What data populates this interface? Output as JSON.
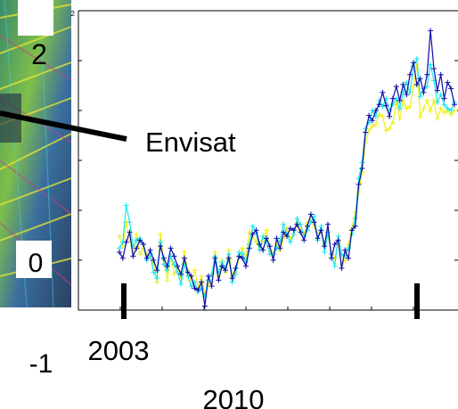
{
  "chart_data": {
    "type": "line",
    "title": "",
    "xlabel": "",
    "ylabel": "",
    "ylim": [
      -0.5,
      2.5
    ],
    "xlim": [
      2003,
      2011
    ],
    "y_tick_labels": [
      "2",
      "0",
      "-1"
    ],
    "x_tick_labels": [
      "2003",
      "2010"
    ],
    "annotations": [
      {
        "text": "Envisat",
        "points_to": "satellite-image"
      }
    ],
    "colors": {
      "series_1": "#0a0aa8",
      "series_2": "#19e6f0",
      "series_3": "#f0f01e",
      "axis": "#000000"
    },
    "series": [
      {
        "values": [
          0.08,
          0.02,
          0.18,
          0.28,
          0.04,
          0.12,
          0.2,
          0.16,
          0.02,
          0.1,
          0.0,
          -0.1,
          0.14,
          0.02,
          -0.06,
          0.12,
          0.04,
          -0.06,
          -0.14,
          0.02,
          -0.12,
          -0.16,
          -0.28,
          -0.3,
          -0.22,
          -0.46,
          -0.16,
          -0.26,
          0.02,
          -0.2,
          -0.06,
          -0.1,
          0.02,
          -0.18,
          -0.08,
          0.04,
          0.02,
          -0.06,
          0.12,
          0.26,
          0.3,
          0.16,
          0.1,
          0.22,
          0.14,
          0.0,
          0.22,
          0.12,
          0.28,
          0.24,
          0.32,
          0.3,
          0.36,
          0.28,
          0.2,
          0.34,
          0.46,
          0.38,
          0.22,
          0.3,
          0.14,
          0.36,
          0.02,
          0.16,
          0.2,
          -0.08,
          0.1,
          0.02,
          0.3,
          0.34,
          0.76,
          0.92,
          1.28,
          1.45,
          1.4,
          1.5,
          1.56,
          1.68,
          1.55,
          1.44,
          1.62,
          1.74,
          1.6,
          1.76,
          1.66,
          1.86,
          1.98,
          1.76,
          1.82,
          1.68,
          1.86,
          2.3,
          1.92,
          1.7,
          1.86,
          1.62,
          1.78,
          1.72,
          1.56
        ]
      },
      {
        "values": [
          0.12,
          0.18,
          0.55,
          0.38,
          0.14,
          0.2,
          0.22,
          0.16,
          0.0,
          0.06,
          -0.12,
          -0.18,
          0.18,
          -0.04,
          -0.1,
          0.04,
          -0.04,
          -0.12,
          -0.24,
          -0.04,
          -0.16,
          -0.26,
          -0.22,
          -0.32,
          -0.28,
          -0.36,
          -0.2,
          -0.14,
          0.04,
          -0.12,
          -0.02,
          -0.08,
          0.06,
          -0.22,
          -0.14,
          0.08,
          0.06,
          -0.02,
          0.16,
          0.34,
          0.28,
          0.1,
          0.24,
          0.18,
          0.06,
          0.06,
          0.12,
          0.2,
          0.36,
          0.26,
          0.18,
          0.26,
          0.42,
          0.36,
          0.24,
          0.3,
          0.38,
          0.44,
          0.2,
          0.34,
          0.08,
          0.28,
          0.06,
          -0.06,
          0.24,
          0.06,
          0.04,
          0.12,
          0.26,
          0.42,
          0.82,
          0.98,
          1.32,
          1.38,
          1.5,
          1.44,
          1.6,
          1.54,
          1.62,
          1.5,
          1.56,
          1.62,
          1.52,
          1.68,
          1.78,
          1.68,
          1.94,
          2.02,
          1.64,
          1.72,
          1.74,
          1.96,
          1.8,
          1.58,
          1.66,
          1.56,
          1.52,
          1.5,
          1.58
        ]
      },
      {
        "values": [
          0.24,
          0.14,
          0.38,
          0.2,
          0.08,
          0.26,
          0.06,
          0.12,
          0.06,
          0.04,
          -0.04,
          -0.22,
          0.26,
          0.0,
          -0.2,
          0.04,
          -0.14,
          -0.06,
          -0.18,
          0.08,
          -0.1,
          -0.2,
          -0.1,
          -0.26,
          -0.16,
          -0.34,
          -0.24,
          -0.22,
          0.08,
          -0.16,
          0.0,
          -0.12,
          0.1,
          -0.16,
          -0.12,
          0.02,
          0.12,
          0.02,
          0.28,
          0.24,
          0.18,
          0.12,
          0.2,
          0.3,
          0.1,
          0.06,
          0.16,
          0.1,
          0.22,
          0.32,
          0.22,
          0.26,
          0.38,
          0.3,
          0.26,
          0.38,
          0.4,
          0.34,
          0.28,
          0.28,
          0.16,
          0.24,
          0.08,
          0.02,
          0.18,
          -0.04,
          0.0,
          0.16,
          0.32,
          0.48,
          0.68,
          0.88,
          1.18,
          1.3,
          1.34,
          1.36,
          1.46,
          1.44,
          1.3,
          1.32,
          1.38,
          1.58,
          1.42,
          1.6,
          1.52,
          1.54,
          1.74,
          1.96,
          1.44,
          1.52,
          1.6,
          1.5,
          1.6,
          1.42,
          1.52,
          1.48,
          1.5,
          1.46,
          1.5
        ]
      }
    ]
  }
}
